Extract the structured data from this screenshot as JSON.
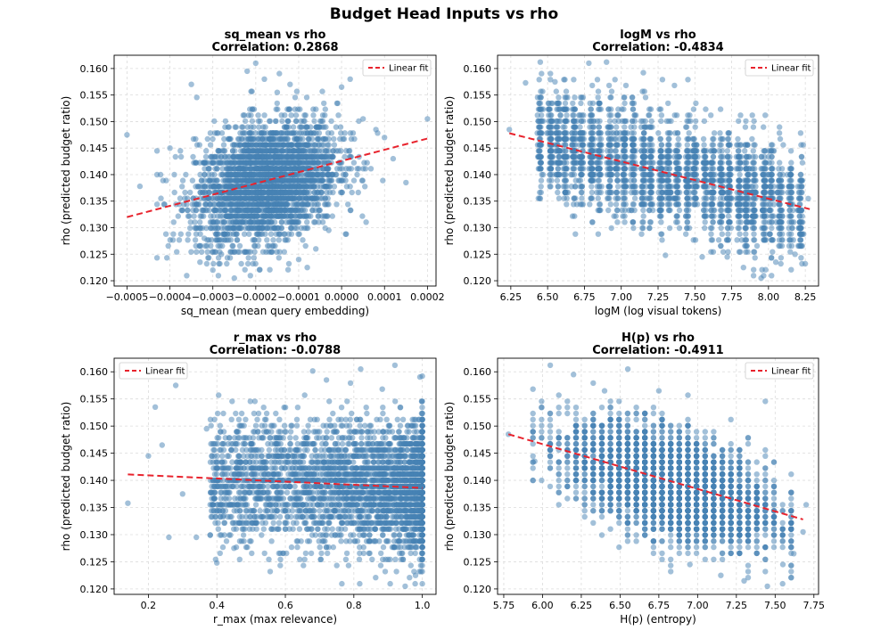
{
  "suptitle": "Budget Head Inputs vs rho",
  "colors": {
    "points": "#4682b4",
    "fit": "#e8232d",
    "grid": "#dcdcdc"
  },
  "chart_data": [
    {
      "type": "scatter",
      "title": "sq_mean vs rho",
      "subtitle": "Correlation: 0.2868",
      "xlabel": "sq_mean (mean query embedding)",
      "ylabel": "rho (predicted budget ratio)",
      "xlim": [
        -0.00053,
        0.00022
      ],
      "ylim": [
        0.119,
        0.1625
      ],
      "xticks": [
        -0.0005,
        -0.0004,
        -0.0003,
        -0.0002,
        -0.0001,
        0.0,
        0.0001,
        0.0002
      ],
      "xtick_labels": [
        "−0.0005",
        "−0.0004",
        "−0.0003",
        "−0.0002",
        "−0.0001",
        "0.0000",
        "0.0001",
        "0.0002"
      ],
      "yticks": [
        0.12,
        0.125,
        0.13,
        0.135,
        0.14,
        0.145,
        0.15,
        0.155,
        0.16
      ],
      "ytick_labels": [
        "0.120",
        "0.125",
        "0.130",
        "0.135",
        "0.140",
        "0.145",
        "0.150",
        "0.155",
        "0.160"
      ],
      "legend": {
        "label": "Linear fit",
        "position": "top-right"
      },
      "fit": {
        "x": [
          -0.0005,
          0.0002
        ],
        "y": [
          0.132,
          0.1468
        ]
      },
      "points": [
        [
          -0.0005,
          0.1475
        ],
        [
          -0.00047,
          0.1378
        ],
        [
          -0.0004,
          0.145
        ],
        [
          -0.00035,
          0.157
        ],
        [
          -0.00033,
          0.1235
        ],
        [
          -0.00032,
          0.128
        ],
        [
          -0.0003,
          0.122
        ],
        [
          -0.00028,
          0.125
        ],
        [
          -0.00025,
          0.1205
        ],
        [
          -0.00022,
          0.1595
        ],
        [
          -0.0002,
          0.161
        ],
        [
          -0.00018,
          0.158
        ],
        [
          -0.00015,
          0.1555
        ],
        [
          -0.00012,
          0.157
        ],
        [
          -0.0001,
          0.124
        ],
        [
          -8e-05,
          0.1225
        ],
        [
          -6e-05,
          0.126
        ],
        [
          -3e-05,
          0.1295
        ],
        [
          0.0,
          0.1565
        ],
        [
          2e-05,
          0.158
        ],
        [
          5e-05,
          0.1505
        ],
        [
          8e-05,
          0.1485
        ],
        [
          0.0001,
          0.147
        ],
        [
          0.00012,
          0.143
        ],
        [
          0.00015,
          0.1385
        ],
        [
          0.0002,
          0.1505
        ]
      ],
      "cloud": {
        "mode": "gauss",
        "n": 3000,
        "xmean": -0.000175,
        "xsd": 8.2e-05,
        "ymean": 0.1385,
        "ysd": 0.0055,
        "slope": 21.0,
        "yquant": 0.00112,
        "xmin": -0.00043,
        "xmax": 0.00012
      }
    },
    {
      "type": "scatter",
      "title": "logM vs rho",
      "subtitle": "Correlation: -0.4834",
      "xlabel": "logM (log visual tokens)",
      "ylabel": "rho (predicted budget ratio)",
      "xlim": [
        6.16,
        8.34
      ],
      "ylim": [
        0.119,
        0.1625
      ],
      "xticks": [
        6.25,
        6.5,
        6.75,
        7.0,
        7.25,
        7.5,
        7.75,
        8.0,
        8.25
      ],
      "xtick_labels": [
        "6.25",
        "6.50",
        "6.75",
        "7.00",
        "7.25",
        "7.50",
        "7.75",
        "8.00",
        "8.25"
      ],
      "yticks": [
        0.12,
        0.125,
        0.13,
        0.135,
        0.14,
        0.145,
        0.15,
        0.155,
        0.16
      ],
      "ytick_labels": [
        "0.120",
        "0.125",
        "0.130",
        "0.135",
        "0.140",
        "0.145",
        "0.150",
        "0.155",
        "0.160"
      ],
      "legend": {
        "label": "Linear fit",
        "position": "top-right"
      },
      "fit": {
        "x": [
          6.24,
          8.28
        ],
        "y": [
          0.1478,
          0.1335
        ]
      },
      "points": [
        [
          6.24,
          0.1485
        ],
        [
          6.35,
          0.1573
        ],
        [
          6.45,
          0.1612
        ],
        [
          6.45,
          0.1355
        ],
        [
          6.55,
          0.1575
        ],
        [
          6.78,
          0.161
        ],
        [
          6.9,
          0.1612
        ],
        [
          7.15,
          0.1592
        ],
        [
          7.3,
          0.1248
        ],
        [
          7.55,
          0.1245
        ],
        [
          7.72,
          0.1245
        ],
        [
          7.83,
          0.1225
        ],
        [
          7.95,
          0.1205
        ],
        [
          8.05,
          0.1235
        ],
        [
          8.18,
          0.125
        ],
        [
          8.25,
          0.1232
        ],
        [
          8.27,
          0.1355
        ]
      ],
      "cloud": {
        "mode": "columns",
        "n": 2600,
        "cols": [
          6.45,
          6.52,
          6.57,
          6.62,
          6.68,
          6.73,
          6.8,
          6.85,
          6.92,
          6.97,
          7.02,
          7.08,
          7.15,
          7.2,
          7.27,
          7.32,
          7.38,
          7.45,
          7.5,
          7.57,
          7.62,
          7.68,
          7.73,
          7.8,
          7.85,
          7.9,
          7.97,
          8.02,
          8.08,
          8.15,
          8.22
        ],
        "xjit": 0.008,
        "ysd": 0.0052,
        "ybase": [
          6.24,
          0.1478
        ],
        "slope": -0.007,
        "yquant": 0.00112
      }
    },
    {
      "type": "scatter",
      "title": "r_max vs rho",
      "subtitle": "Correlation: -0.0788",
      "xlabel": "r_max (max relevance)",
      "ylabel": "rho (predicted budget ratio)",
      "xlim": [
        0.1,
        1.04
      ],
      "ylim": [
        0.119,
        0.1625
      ],
      "xticks": [
        0.2,
        0.4,
        0.6,
        0.8,
        1.0
      ],
      "xtick_labels": [
        "0.2",
        "0.4",
        "0.6",
        "0.8",
        "1.0"
      ],
      "yticks": [
        0.12,
        0.125,
        0.13,
        0.135,
        0.14,
        0.145,
        0.15,
        0.155,
        0.16
      ],
      "ytick_labels": [
        "0.120",
        "0.125",
        "0.130",
        "0.135",
        "0.140",
        "0.145",
        "0.150",
        "0.155",
        "0.160"
      ],
      "legend": {
        "label": "Linear fit",
        "position": "top-left"
      },
      "fit": {
        "x": [
          0.14,
          1.0
        ],
        "y": [
          0.1411,
          0.1386
        ]
      },
      "points": [
        [
          0.14,
          0.1358
        ],
        [
          0.2,
          0.1445
        ],
        [
          0.22,
          0.1535
        ],
        [
          0.24,
          0.1465
        ],
        [
          0.26,
          0.1295
        ],
        [
          0.28,
          0.1575
        ],
        [
          0.3,
          0.1375
        ],
        [
          0.34,
          0.1295
        ],
        [
          0.37,
          0.1495
        ],
        [
          0.4,
          0.1248
        ],
        [
          0.42,
          0.1335
        ],
        [
          0.45,
          0.1275
        ],
        [
          0.92,
          0.1612
        ],
        [
          0.95,
          0.1205
        ],
        [
          0.98,
          0.1225
        ],
        [
          1.0,
          0.1592
        ],
        [
          0.82,
          0.1605
        ],
        [
          0.72,
          0.1585
        ]
      ],
      "cloud": {
        "mode": "rmax",
        "n": 3400,
        "ymean": 0.1395,
        "ysd": 0.0058,
        "yquant": 0.00112
      }
    },
    {
      "type": "scatter",
      "title": "H(p) vs rho",
      "subtitle": "Correlation: -0.4911",
      "xlabel": "H(p) (entropy)",
      "ylabel": "rho (predicted budget ratio)",
      "xlim": [
        5.71,
        7.78
      ],
      "ylim": [
        0.119,
        0.1625
      ],
      "xticks": [
        5.75,
        6.0,
        6.25,
        6.5,
        6.75,
        7.0,
        7.25,
        7.5,
        7.75
      ],
      "xtick_labels": [
        "5.75",
        "6.00",
        "6.25",
        "6.50",
        "6.75",
        "7.00",
        "7.25",
        "7.50",
        "7.75"
      ],
      "yticks": [
        0.12,
        0.125,
        0.13,
        0.135,
        0.14,
        0.145,
        0.15,
        0.155,
        0.16
      ],
      "ytick_labels": [
        "0.120",
        "0.125",
        "0.130",
        "0.135",
        "0.140",
        "0.145",
        "0.150",
        "0.155",
        "0.160"
      ],
      "legend": {
        "label": "Linear fit",
        "position": "top-right"
      },
      "fit": {
        "x": [
          5.78,
          7.68
        ],
        "y": [
          0.1485,
          0.1328
        ]
      },
      "points": [
        [
          5.78,
          0.1485
        ],
        [
          5.95,
          0.1435
        ],
        [
          6.05,
          0.1612
        ],
        [
          6.2,
          0.1595
        ],
        [
          6.4,
          0.1565
        ],
        [
          6.55,
          0.1605
        ],
        [
          6.75,
          0.1565
        ],
        [
          6.95,
          0.1245
        ],
        [
          7.15,
          0.1225
        ],
        [
          7.3,
          0.1215
        ],
        [
          7.45,
          0.1205
        ],
        [
          7.55,
          0.1245
        ],
        [
          7.62,
          0.1265
        ],
        [
          7.7,
          0.1355
        ],
        [
          7.68,
          0.1305
        ]
      ],
      "cloud": {
        "mode": "gauss",
        "n": 3300,
        "xmean": 6.82,
        "xsd": 0.33,
        "ymean": 0.1393,
        "ysd": 0.0047,
        "slope": -0.0085,
        "yquant": 0.00112,
        "xquant": 0.0555,
        "xmin": 5.95,
        "xmax": 7.62
      }
    }
  ]
}
